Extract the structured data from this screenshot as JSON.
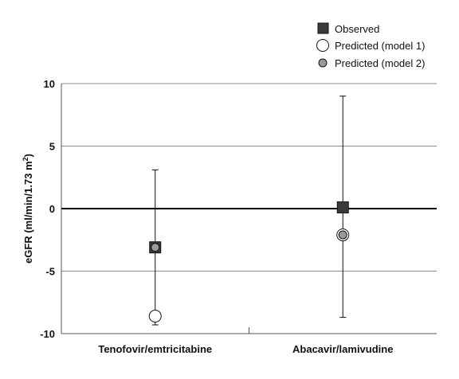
{
  "chart_data": {
    "type": "scatter",
    "title": "",
    "xlabel": "",
    "ylabel_main": "eGFR (ml/min/1.73 m",
    "ylabel_sup": "2",
    "ylabel_close": ")",
    "ylim": [
      -10,
      10
    ],
    "yticks": [
      10,
      5,
      0,
      -5,
      -10
    ],
    "yticks_text": [
      "10",
      "5",
      "0",
      "-5",
      "-10"
    ],
    "grid": true,
    "legend_position": "top-right",
    "categories": [
      "Tenofovir/emtricitabine",
      "Abacavir/lamivudine"
    ],
    "series": [
      {
        "name": "Observed",
        "marker": "square",
        "color": "#3a3a3a",
        "values": [
          -3.1,
          0.1
        ],
        "error_low": [
          -9.3,
          -8.7
        ],
        "error_high": [
          3.1,
          9.0
        ]
      },
      {
        "name": "Predicted (model 1)",
        "marker": "circle-open",
        "color": "#ffffff",
        "values": [
          -8.6,
          null
        ]
      },
      {
        "name": "Predicted (model 2)",
        "marker": "circle-gray",
        "color": "#9a9a9a",
        "values": [
          -3.1,
          -2.1
        ]
      }
    ]
  }
}
